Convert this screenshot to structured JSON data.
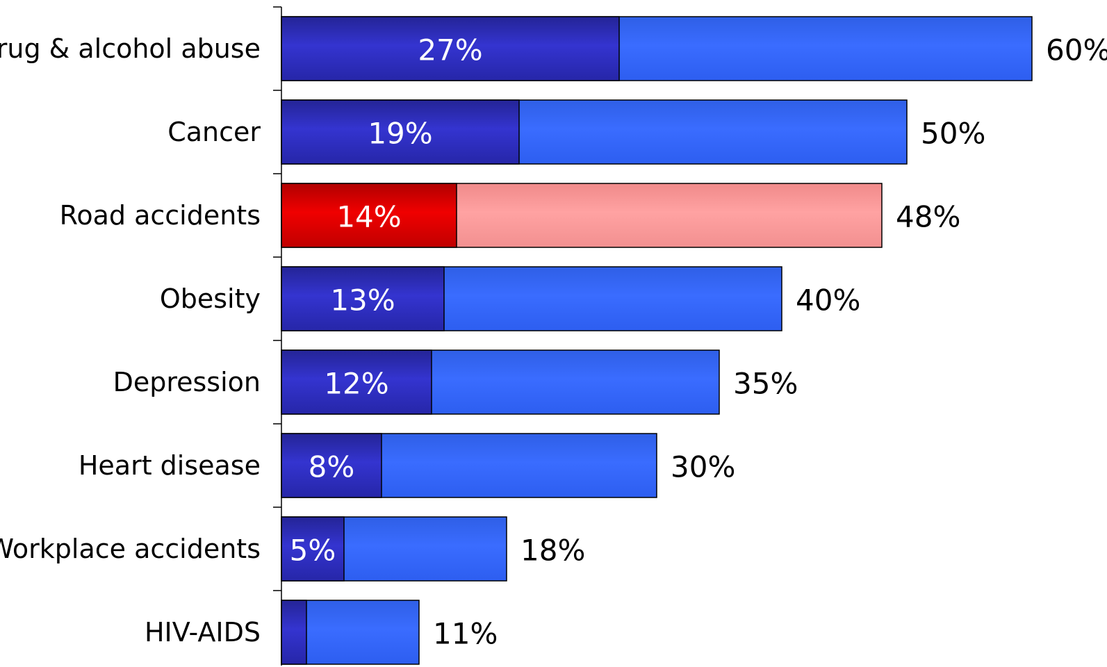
{
  "chart_data": {
    "type": "bar",
    "orientation": "horizontal",
    "stacked": false,
    "categories": [
      "Drug & alcohol abuse",
      "Cancer",
      "Road accidents",
      "Obesity",
      "Depression",
      "Heart disease",
      "Workplace accidents",
      "HIV-AIDS"
    ],
    "series": [
      {
        "values": [
          60,
          50,
          48,
          40,
          35,
          30,
          18,
          11
        ],
        "labels": [
          "60%",
          "50%",
          "48%",
          "40%",
          "35%",
          "30%",
          "18%",
          "11%"
        ]
      },
      {
        "values": [
          27,
          19,
          14,
          13,
          12,
          8,
          5,
          2
        ],
        "labels": [
          "27%",
          "19%",
          "14%",
          "13%",
          "12%",
          "8%",
          "5%",
          ""
        ]
      }
    ],
    "highlight_category": "Road accidents",
    "colors": {
      "outer_bar": "#3366ff",
      "inner_bar": "#2e2ec4",
      "highlight_outer_bar": "#ff9999",
      "highlight_inner_bar": "#e00000",
      "bar_border": "#000000"
    },
    "xlim": [
      0,
      60
    ],
    "axis": "left vertical axis with tick marks between categories",
    "grid": false,
    "legend": "none",
    "title": "",
    "xlabel": "",
    "ylabel": ""
  }
}
